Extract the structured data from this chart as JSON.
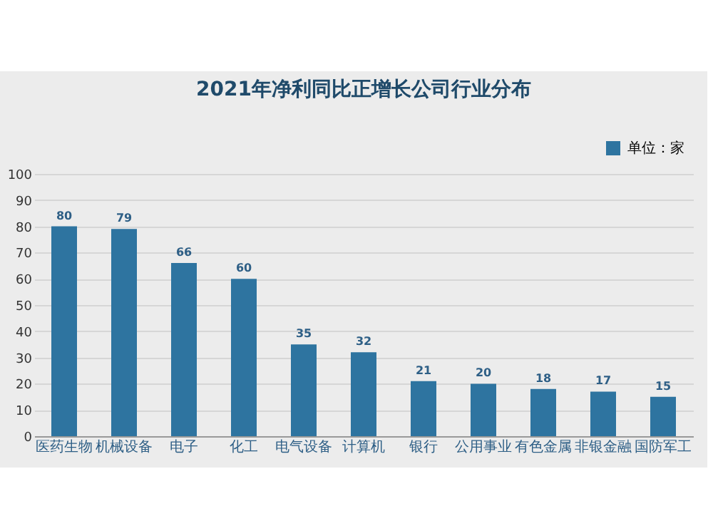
{
  "chart_data": {
    "type": "bar",
    "title": "2021年净利同比正增长公司行业分布",
    "categories": [
      "医药生物",
      "机械设备",
      "电子",
      "化工",
      "电气设备",
      "计算机",
      "银行",
      "公用事业",
      "有色金属",
      "非银金融",
      "国防军工"
    ],
    "series": [
      {
        "name": "单位：家",
        "color": "#2e74a0",
        "values": [
          80,
          79,
          66,
          60,
          35,
          32,
          21,
          20,
          18,
          17,
          15
        ]
      }
    ],
    "ylim": [
      0,
      100
    ],
    "yticks": [
      0,
      10,
      20,
      30,
      40,
      50,
      60,
      70,
      80,
      90,
      100
    ],
    "grid": "y",
    "legend": "top right",
    "data_labels": true
  }
}
